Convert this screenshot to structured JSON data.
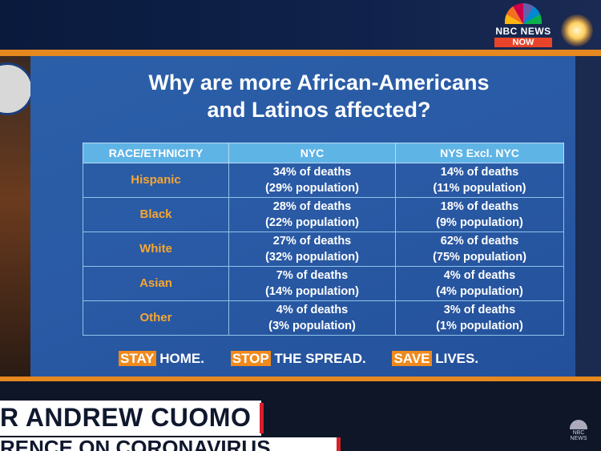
{
  "broadcast": {
    "network": "NBC NEWS",
    "channel": "NOW",
    "corner_logo_text": "NBC NEWS"
  },
  "slide": {
    "title_line1": "Why are more African-Americans",
    "title_line2": "and Latinos affected?",
    "table": {
      "headers": [
        "RACE/ETHNICITY",
        "NYC",
        "NYS Excl. NYC"
      ],
      "rows": [
        {
          "race": "Hispanic",
          "nyc_deaths": "34% of deaths",
          "nyc_pop": "(29% population)",
          "nys_deaths": "14% of deaths",
          "nys_pop": "(11% population)"
        },
        {
          "race": "Black",
          "nyc_deaths": "28% of deaths",
          "nyc_pop": "(22% population)",
          "nys_deaths": "18% of deaths",
          "nys_pop": "(9% population)"
        },
        {
          "race": "White",
          "nyc_deaths": "27% of deaths",
          "nyc_pop": "(32% population)",
          "nys_deaths": "62% of deaths",
          "nys_pop": "(75% population)"
        },
        {
          "race": "Asian",
          "nyc_deaths": "7% of deaths",
          "nyc_pop": "(14% population)",
          "nys_deaths": "4% of deaths",
          "nys_pop": "(4% population)"
        },
        {
          "race": "Other",
          "nyc_deaths": "4% of deaths",
          "nyc_pop": "(3% population)",
          "nys_deaths": "3% of deaths",
          "nys_pop": "(1% population)"
        }
      ]
    },
    "slogan": {
      "hl1": "STAY",
      "rest1": " HOME.",
      "hl2": "STOP",
      "rest2": " THE SPREAD.",
      "hl3": "SAVE",
      "rest3": " LIVES."
    }
  },
  "lower_third": {
    "name": "R ANDREW CUOMO",
    "subtitle": "RENCE ON CORONAVIRUS"
  },
  "colors": {
    "slide_bg": "#2b5fa8",
    "header_bg": "#5fb4e6",
    "race_text": "#f7a630",
    "accent_orange": "#e4881f",
    "highlight": "#f08a1c"
  }
}
